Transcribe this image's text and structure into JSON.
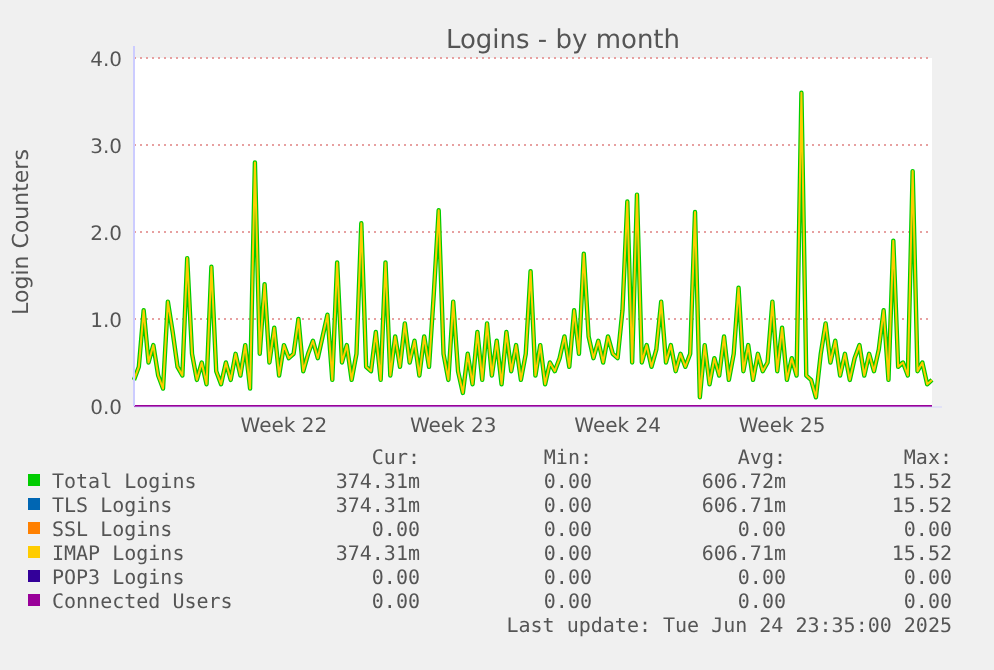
{
  "chart_data": {
    "type": "line",
    "title": "Logins - by month",
    "ylabel": "Login Counters",
    "categories": [
      null,
      null,
      null,
      null,
      null,
      null,
      null,
      null,
      null,
      null,
      null,
      null,
      null,
      null,
      null,
      null,
      null,
      null,
      null,
      null,
      null,
      null,
      null,
      null,
      null,
      null,
      null,
      null,
      null,
      null,
      null,
      "Week 22",
      null,
      null,
      null,
      null,
      null,
      null,
      null,
      null,
      null,
      null,
      null,
      null,
      null,
      null,
      null,
      null,
      null,
      null,
      null,
      null,
      null,
      null,
      null,
      null,
      null,
      null,
      null,
      null,
      null,
      null,
      null,
      null,
      null,
      null,
      "Week 23",
      null,
      null,
      null,
      null,
      null,
      null,
      null,
      null,
      null,
      null,
      null,
      null,
      null,
      null,
      null,
      null,
      null,
      null,
      null,
      null,
      null,
      null,
      null,
      null,
      null,
      null,
      null,
      null,
      null,
      null,
      null,
      null,
      null,
      "Week 24",
      null,
      null,
      null,
      null,
      null,
      null,
      null,
      null,
      null,
      null,
      null,
      null,
      null,
      null,
      null,
      null,
      null,
      null,
      null,
      null,
      null,
      null,
      null,
      null,
      null,
      null,
      null,
      null,
      null,
      null,
      null,
      null,
      null,
      "Week 25",
      null,
      null,
      null,
      null,
      null,
      null,
      null,
      null,
      null,
      null,
      null,
      null,
      null,
      null,
      null,
      null,
      null,
      null,
      null,
      null,
      null,
      null,
      null,
      null,
      null,
      null,
      null,
      null,
      null,
      null,
      null
    ],
    "ylim": [
      0,
      4
    ],
    "yticks": [
      {
        "value": 0,
        "label": "0.0"
      },
      {
        "value": 1,
        "label": "1.0"
      },
      {
        "value": 2,
        "label": "2.0"
      },
      {
        "value": 3,
        "label": "3.0"
      },
      {
        "value": 4,
        "label": "4.0"
      }
    ],
    "grid": "y",
    "legend": "bottom",
    "series": [
      {
        "name": "Total Logins",
        "color": "#00cc00",
        "values": [
          0.3,
          0.45,
          1.1,
          0.5,
          0.7,
          0.35,
          0.2,
          1.2,
          0.85,
          0.45,
          0.35,
          1.7,
          0.6,
          0.3,
          0.5,
          0.25,
          1.6,
          0.4,
          0.25,
          0.5,
          0.3,
          0.6,
          0.35,
          0.7,
          0.2,
          2.8,
          0.6,
          1.4,
          0.5,
          0.9,
          0.35,
          0.7,
          0.55,
          0.6,
          1.0,
          0.4,
          0.6,
          0.75,
          0.55,
          0.8,
          1.05,
          0.3,
          1.65,
          0.5,
          0.7,
          0.3,
          0.6,
          2.1,
          0.45,
          0.4,
          0.85,
          0.3,
          1.65,
          0.35,
          0.8,
          0.45,
          0.95,
          0.5,
          0.75,
          0.35,
          0.8,
          0.45,
          1.3,
          2.25,
          0.6,
          0.3,
          1.2,
          0.4,
          0.15,
          0.6,
          0.25,
          0.85,
          0.3,
          0.95,
          0.35,
          0.75,
          0.25,
          0.85,
          0.4,
          0.7,
          0.3,
          0.6,
          1.55,
          0.35,
          0.7,
          0.25,
          0.5,
          0.4,
          0.55,
          0.8,
          0.45,
          1.1,
          0.6,
          1.75,
          0.8,
          0.55,
          0.75,
          0.5,
          0.8,
          0.6,
          0.55,
          1.1,
          2.35,
          0.5,
          2.43,
          0.5,
          0.7,
          0.45,
          0.65,
          1.2,
          0.5,
          0.7,
          0.4,
          0.6,
          0.45,
          0.6,
          2.23,
          0.1,
          0.7,
          0.25,
          0.55,
          0.35,
          0.8,
          0.3,
          0.6,
          1.36,
          0.4,
          0.7,
          0.3,
          0.6,
          0.4,
          0.5,
          1.2,
          0.4,
          0.9,
          0.3,
          0.55,
          0.35,
          3.6,
          0.35,
          0.3,
          0.1,
          0.6,
          0.95,
          0.5,
          0.75,
          0.35,
          0.6,
          0.3,
          0.55,
          0.7,
          0.35,
          0.6,
          0.4,
          0.65,
          1.1,
          0.3,
          1.9,
          0.45,
          0.5,
          0.35,
          2.7,
          0.4,
          0.5,
          0.25,
          0.3
        ]
      },
      {
        "name": "TLS Logins",
        "color": "#0066b3",
        "values": [
          null,
          null,
          null,
          null,
          null,
          null,
          null,
          null,
          null,
          null,
          null,
          null,
          null,
          null,
          null,
          null,
          null,
          null,
          null,
          null,
          null,
          null,
          null,
          null,
          null,
          null,
          null,
          null,
          null,
          null,
          null,
          null,
          null,
          null,
          null,
          null,
          null,
          null,
          null,
          null,
          null,
          null,
          null,
          null,
          null,
          null,
          null,
          null,
          null,
          null,
          null,
          null,
          null,
          null,
          null,
          null,
          null,
          null,
          null,
          null,
          null,
          null,
          null,
          null,
          null,
          null,
          null,
          null,
          null,
          null,
          null,
          null,
          null,
          null,
          null,
          null,
          null,
          null,
          null,
          null,
          null,
          null,
          null,
          null,
          null,
          null,
          null,
          null,
          null,
          null,
          null,
          null,
          null,
          null,
          null,
          null,
          null,
          null,
          null,
          null,
          null,
          null,
          null,
          null,
          null,
          null,
          null,
          null,
          null,
          null,
          null,
          null,
          null,
          null,
          null,
          null,
          null,
          null,
          null,
          null,
          null,
          null,
          null,
          null,
          null,
          null,
          null,
          null,
          null,
          null,
          null,
          null,
          null,
          null,
          null,
          null,
          null,
          null,
          null,
          null,
          null,
          null,
          null,
          null,
          null,
          null,
          null,
          null,
          null,
          null,
          null,
          null,
          null,
          null,
          null,
          null,
          null,
          null,
          null,
          null,
          null,
          null,
          null,
          null,
          null,
          null
        ]
      },
      {
        "name": "SSL Logins",
        "color": "#ff8000",
        "values": [
          null,
          null,
          null,
          null,
          null,
          null,
          null,
          null,
          null,
          null,
          null,
          null,
          null,
          null,
          null,
          null,
          null,
          null,
          null,
          null,
          null,
          null,
          null,
          null,
          null,
          null,
          null,
          null,
          null,
          null,
          null,
          null,
          null,
          null,
          null,
          null,
          null,
          null,
          null,
          null,
          null,
          null,
          null,
          null,
          null,
          null,
          null,
          null,
          null,
          null,
          null,
          null,
          null,
          null,
          null,
          null,
          null,
          null,
          null,
          null,
          null,
          null,
          null,
          null,
          null,
          null,
          null,
          null,
          null,
          null,
          null,
          null,
          null,
          null,
          null,
          null,
          null,
          null,
          null,
          null,
          null,
          null,
          null,
          null,
          null,
          null,
          null,
          null,
          null,
          null,
          null,
          null,
          null,
          null,
          null,
          null,
          null,
          null,
          null,
          null,
          null,
          null,
          null,
          null,
          null,
          null,
          null,
          null,
          null,
          null,
          null,
          null,
          null,
          null,
          null,
          null,
          null,
          null,
          null,
          null,
          null,
          null,
          null,
          null,
          null,
          null,
          null,
          null,
          null,
          null,
          null,
          null,
          null,
          null,
          null,
          null,
          null,
          null,
          null,
          null,
          null,
          null,
          null,
          null,
          null,
          null,
          null,
          null,
          null,
          null,
          null,
          null,
          null,
          null,
          null,
          null,
          null,
          null,
          null,
          null,
          null,
          null,
          null,
          null,
          null,
          null
        ]
      },
      {
        "name": "IMAP Logins",
        "color": "#ffcc00",
        "values": [
          0.3,
          0.45,
          1.1,
          0.5,
          0.7,
          0.35,
          0.2,
          1.2,
          0.85,
          0.45,
          0.35,
          1.7,
          0.6,
          0.3,
          0.5,
          0.25,
          1.6,
          0.4,
          0.25,
          0.5,
          0.3,
          0.6,
          0.35,
          0.7,
          0.2,
          2.8,
          0.6,
          1.4,
          0.5,
          0.9,
          0.35,
          0.7,
          0.55,
          0.6,
          1.0,
          0.4,
          0.6,
          0.75,
          0.55,
          0.8,
          1.05,
          0.3,
          1.65,
          0.5,
          0.7,
          0.3,
          0.6,
          2.1,
          0.45,
          0.4,
          0.85,
          0.3,
          1.65,
          0.35,
          0.8,
          0.45,
          0.95,
          0.5,
          0.75,
          0.35,
          0.8,
          0.45,
          1.3,
          2.25,
          0.6,
          0.3,
          1.2,
          0.4,
          0.15,
          0.6,
          0.25,
          0.85,
          0.3,
          0.95,
          0.35,
          0.75,
          0.25,
          0.85,
          0.4,
          0.7,
          0.3,
          0.6,
          1.55,
          0.35,
          0.7,
          0.25,
          0.5,
          0.4,
          0.55,
          0.8,
          0.45,
          1.1,
          0.6,
          1.75,
          0.8,
          0.55,
          0.75,
          0.5,
          0.8,
          0.6,
          0.55,
          1.1,
          2.35,
          0.5,
          2.43,
          0.5,
          0.7,
          0.45,
          0.65,
          1.2,
          0.5,
          0.7,
          0.4,
          0.6,
          0.45,
          0.6,
          2.23,
          0.1,
          0.7,
          0.25,
          0.55,
          0.35,
          0.8,
          0.3,
          0.6,
          1.36,
          0.4,
          0.7,
          0.3,
          0.6,
          0.4,
          0.5,
          1.2,
          0.4,
          0.9,
          0.3,
          0.55,
          0.35,
          3.6,
          0.35,
          0.3,
          0.1,
          0.6,
          0.95,
          0.5,
          0.75,
          0.35,
          0.6,
          0.3,
          0.55,
          0.7,
          0.35,
          0.6,
          0.4,
          0.65,
          1.1,
          0.3,
          1.9,
          0.45,
          0.5,
          0.35,
          2.7,
          0.4,
          0.5,
          0.25,
          0.3
        ]
      },
      {
        "name": "POP3 Logins",
        "color": "#330099",
        "values": [
          null,
          null,
          null,
          null,
          null,
          null,
          null,
          null,
          null,
          null,
          null,
          null,
          null,
          null,
          null,
          null,
          null,
          null,
          null,
          null,
          null,
          null,
          null,
          null,
          null,
          null,
          null,
          null,
          null,
          null,
          null,
          null,
          null,
          null,
          null,
          null,
          null,
          null,
          null,
          null,
          null,
          null,
          null,
          null,
          null,
          null,
          null,
          null,
          null,
          null,
          null,
          null,
          null,
          null,
          null,
          null,
          null,
          null,
          null,
          null,
          null,
          null,
          null,
          null,
          null,
          null,
          null,
          null,
          null,
          null,
          null,
          null,
          null,
          null,
          null,
          null,
          null,
          null,
          null,
          null,
          null,
          null,
          null,
          null,
          null,
          null,
          null,
          null,
          null,
          null,
          null,
          null,
          null,
          null,
          null,
          null,
          null,
          null,
          null,
          null,
          null,
          null,
          null,
          null,
          null,
          null,
          null,
          null,
          null,
          null,
          null,
          null,
          null,
          null,
          null,
          null,
          null,
          null,
          null,
          null,
          null,
          null,
          null,
          null,
          null,
          null,
          null,
          null,
          null,
          null,
          null,
          null,
          null,
          null,
          null,
          null,
          null,
          null,
          null,
          null,
          null,
          null,
          null,
          null,
          null,
          null,
          null,
          null,
          null,
          null,
          null,
          null,
          null,
          null,
          null,
          null,
          null,
          null,
          null,
          null,
          null,
          null,
          null,
          null,
          null,
          null
        ]
      },
      {
        "name": "Connected Users",
        "color": "#990099",
        "values": [
          0,
          0,
          0,
          0,
          0,
          0,
          0,
          0,
          0,
          0,
          0,
          0,
          0,
          0,
          0,
          0,
          0,
          0,
          0,
          0,
          0,
          0,
          0,
          0,
          0,
          0,
          0,
          0,
          0,
          0,
          0,
          0,
          0,
          0,
          0,
          0,
          0,
          0,
          0,
          0,
          0,
          0,
          0,
          0,
          0,
          0,
          0,
          0,
          0,
          0,
          0,
          0,
          0,
          0,
          0,
          0,
          0,
          0,
          0,
          0,
          0,
          0,
          0,
          0,
          0,
          0,
          0,
          0,
          0,
          0,
          0,
          0,
          0,
          0,
          0,
          0,
          0,
          0,
          0,
          0,
          0,
          0,
          0,
          0,
          0,
          0,
          0,
          0,
          0,
          0,
          0,
          0,
          0,
          0,
          0,
          0,
          0,
          0,
          0,
          0,
          0,
          0,
          0,
          0,
          0,
          0,
          0,
          0,
          0,
          0,
          0,
          0,
          0,
          0,
          0,
          0,
          0,
          0,
          0,
          0,
          0,
          0,
          0,
          0,
          0,
          0,
          0,
          0,
          0,
          0,
          0,
          0,
          0,
          0,
          0,
          0,
          0,
          0,
          0,
          0,
          0,
          0,
          0,
          0,
          0,
          0,
          0,
          0,
          0,
          0,
          0,
          0,
          0,
          0,
          0,
          0,
          0,
          0,
          0,
          0,
          0,
          0,
          0,
          0,
          0,
          0
        ]
      }
    ],
    "annotations": [
      "Cur:",
      "Min:",
      "Avg:",
      "Max:",
      "374.31m",
      "0.00",
      "606.72m",
      "15.52",
      "374.31m",
      "0.00",
      "606.71m",
      "15.52",
      "0.00",
      "0.00",
      "0.00",
      "0.00",
      "374.31m",
      "0.00",
      "606.71m",
      "15.52",
      "0.00",
      "0.00",
      "0.00",
      "0.00",
      "0.00",
      "0.00",
      "0.00",
      "0.00",
      "Last update: Tue Jun 24 23:35:00 2025"
    ]
  }
}
